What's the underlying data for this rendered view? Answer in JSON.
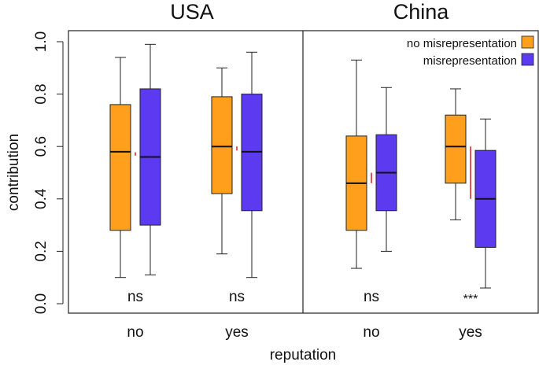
{
  "chart_data": {
    "type": "boxplot",
    "ylabel": "contribution",
    "xlabel": "reputation",
    "ylim": [
      0.0,
      1.0
    ],
    "yticks": [
      "0.0",
      "0.2",
      "0.4",
      "0.6",
      "0.8",
      "1.0"
    ],
    "categories": [
      "no",
      "yes"
    ],
    "legend": {
      "placement": "top-right",
      "entries": [
        {
          "label": "no misrepresentation",
          "color": "#ff9f1c"
        },
        {
          "label": "misrepresentation",
          "color": "#5b3af0"
        }
      ]
    },
    "panels": [
      {
        "title": "USA",
        "groups": [
          {
            "category": "no",
            "significance": "ns",
            "boxes": [
              {
                "series": "no misrepresentation",
                "whisker_low": 0.1,
                "q1": 0.28,
                "median": 0.58,
                "q3": 0.76,
                "whisker_high": 0.94
              },
              {
                "series": "misrepresentation",
                "whisker_low": 0.11,
                "q1": 0.3,
                "median": 0.56,
                "q3": 0.82,
                "whisker_high": 0.99
              }
            ],
            "mean_diff": [
              0.565,
              0.578
            ]
          },
          {
            "category": "yes",
            "significance": "ns",
            "boxes": [
              {
                "series": "no misrepresentation",
                "whisker_low": 0.19,
                "q1": 0.42,
                "median": 0.6,
                "q3": 0.79,
                "whisker_high": 0.9
              },
              {
                "series": "misrepresentation",
                "whisker_low": 0.1,
                "q1": 0.355,
                "median": 0.58,
                "q3": 0.8,
                "whisker_high": 0.96
              }
            ],
            "mean_diff": [
              0.585,
              0.6
            ]
          }
        ]
      },
      {
        "title": "China",
        "groups": [
          {
            "category": "no",
            "significance": "ns",
            "boxes": [
              {
                "series": "no misrepresentation",
                "whisker_low": 0.135,
                "q1": 0.28,
                "median": 0.46,
                "q3": 0.64,
                "whisker_high": 0.93
              },
              {
                "series": "misrepresentation",
                "whisker_low": 0.2,
                "q1": 0.355,
                "median": 0.5,
                "q3": 0.645,
                "whisker_high": 0.825
              }
            ],
            "mean_diff": [
              0.46,
              0.5
            ]
          },
          {
            "category": "yes",
            "significance": "***",
            "boxes": [
              {
                "series": "no misrepresentation",
                "whisker_low": 0.32,
                "q1": 0.46,
                "median": 0.6,
                "q3": 0.72,
                "whisker_high": 0.82
              },
              {
                "series": "misrepresentation",
                "whisker_low": 0.06,
                "q1": 0.215,
                "median": 0.4,
                "q3": 0.585,
                "whisker_high": 0.705
              }
            ],
            "mean_diff": [
              0.4,
              0.6
            ]
          }
        ]
      }
    ],
    "mean_diff_color": "#e8232a"
  }
}
